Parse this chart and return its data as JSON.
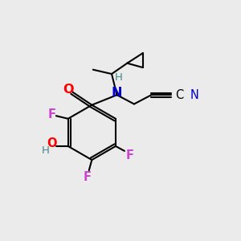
{
  "bg_color": "#ebebeb",
  "atom_colors": {
    "C": "#000000",
    "N": "#0000cd",
    "O": "#ff0000",
    "F": "#cc44cc",
    "H": "#448888",
    "N_nitrile": "#0000cd"
  },
  "bond_color": "#000000",
  "bond_width": 1.5,
  "font_size": 10.5
}
